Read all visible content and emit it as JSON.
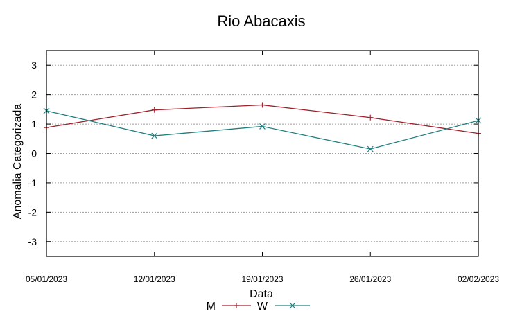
{
  "chart_data": {
    "type": "line",
    "title": "Rio Abacaxis",
    "xlabel": "Data",
    "ylabel": "Anomalia Categorizada",
    "x": [
      "05/01/2023",
      "12/01/2023",
      "19/01/2023",
      "26/01/2023",
      "02/02/2023"
    ],
    "ylim": [
      -3.5,
      3.5
    ],
    "yticks": [
      3,
      2,
      1,
      0,
      -1,
      -2,
      -3
    ],
    "grid": true,
    "legend_position": "bottom",
    "series": [
      {
        "name": "M",
        "color": "#a0202a",
        "marker": "plus",
        "values": [
          0.88,
          1.48,
          1.65,
          1.22,
          0.68
        ]
      },
      {
        "name": "W",
        "color": "#1f7f80",
        "marker": "cross",
        "values": [
          1.45,
          0.6,
          0.92,
          0.15,
          1.12
        ]
      }
    ]
  }
}
